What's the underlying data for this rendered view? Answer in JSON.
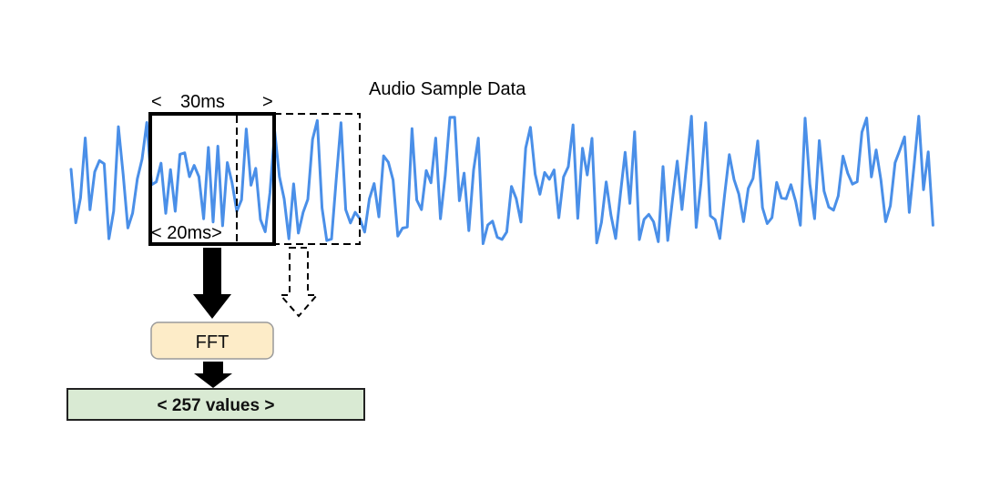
{
  "diagram": {
    "title": "Audio Sample Data",
    "window_label": "30ms",
    "window_left_bracket": "<",
    "window_right_bracket": ">",
    "stride_label": "< 20ms>",
    "fft_label": "FFT",
    "output_label": "< 257 values >",
    "colors": {
      "waveform": "#4a8fe8",
      "fft_fill": "#fdecc8",
      "fft_stroke": "#9a9a9a",
      "output_fill": "#d9ead3",
      "output_stroke": "#222222",
      "arrow": "#000000"
    }
  }
}
